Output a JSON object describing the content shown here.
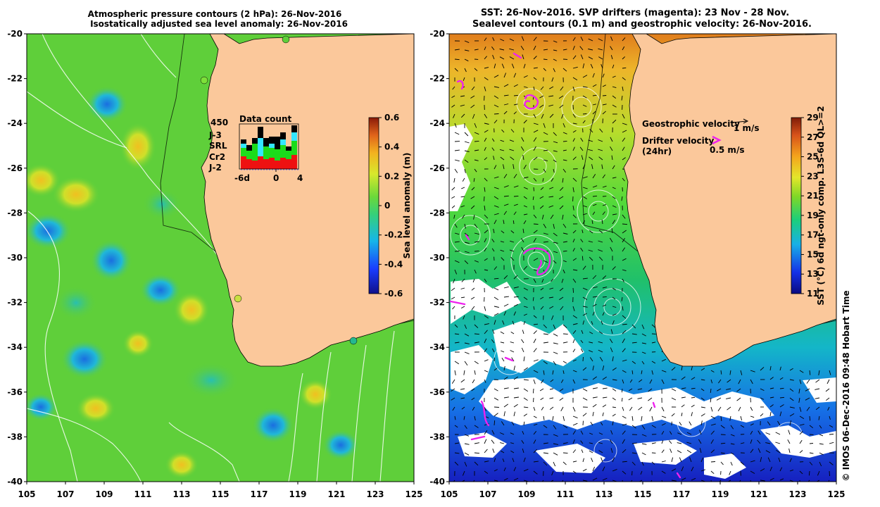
{
  "left_map": {
    "title_line1": "Atmospheric pressure contours (2 hPa): 26-Nov-2016",
    "title_line2": "Isostatically adjusted sea level anomaly: 26-Nov-2016",
    "colorbar_label": "Sea level anomaly (m)",
    "colorbar_ticks": [
      "0.6",
      "0.4",
      "0.2",
      "0",
      "-0.2",
      "-0.4",
      "-0.6"
    ],
    "colors": {
      "sea": "#5fcf3a",
      "land": "#fbc89b"
    },
    "inset": {
      "title": "Data count",
      "max_label": "450",
      "legend": [
        {
          "label": "J-3",
          "color": "#000000"
        },
        {
          "label": "SRL",
          "color": "#33e6ff"
        },
        {
          "label": "Cr2",
          "color": "#1bdc1b"
        },
        {
          "label": "J-2",
          "color": "#ee1111"
        }
      ],
      "axis_labels": [
        "-6d",
        "0",
        "4"
      ]
    }
  },
  "right_map": {
    "title_line1": "SST: 26-Nov-2016. SVP drifters (magenta): 23 Nov - 28 Nov.",
    "title_line2": "Sealevel contours (0.1 m) and geostrophic velocity: 26-Nov-2016.",
    "legend_geostrophic": "Geostrophic velocity",
    "legend_geostrophic_scale": "1 m/s",
    "legend_drifter_line1": "Drifter velocity",
    "legend_drifter_line2": "(24hr)",
    "legend_drifter_scale": "0.5 m/s",
    "colorbar_label": "SST (°C) 6d ngt-only comp. L3S-6d QL>=2",
    "colorbar_ticks": [
      "29",
      "27",
      "25",
      "23",
      "21",
      "19",
      "17",
      "15",
      "13",
      "11"
    ],
    "credit": "© IMOS 06-Dec-2016 09:48 Hobart Time"
  },
  "axes": {
    "lat_ticks": [
      "-20",
      "-22",
      "-24",
      "-26",
      "-28",
      "-30",
      "-32",
      "-34",
      "-36",
      "-38",
      "-40"
    ],
    "lon_ticks": [
      "105",
      "107",
      "109",
      "111",
      "113",
      "115",
      "117",
      "119",
      "121",
      "123",
      "125"
    ]
  }
}
